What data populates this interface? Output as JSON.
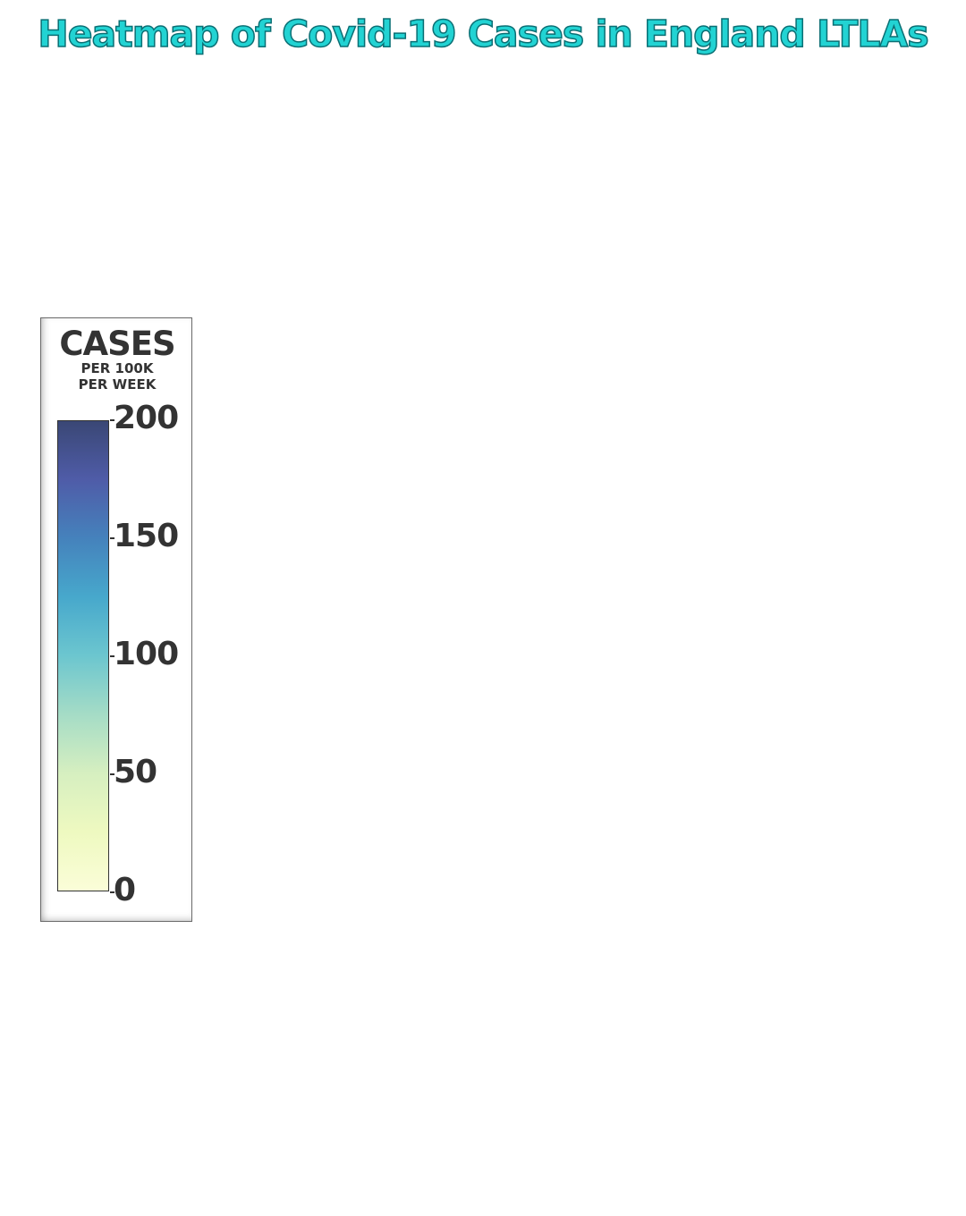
{
  "title": "Heatmap of Covid-19 Cases in England LTLAs",
  "colors": {
    "title_fill": "#22d3d3",
    "title_outline": "#0b6f74",
    "text": "#333333"
  },
  "legend": {
    "title": "CASES",
    "subtitle_line1": "PER 100K",
    "subtitle_line2": "PER WEEK",
    "min": 0,
    "max": 200,
    "ticks": [
      {
        "value": 200,
        "label": "200"
      },
      {
        "value": 150,
        "label": "150"
      },
      {
        "value": 100,
        "label": "100"
      },
      {
        "value": 50,
        "label": "50"
      },
      {
        "value": 0,
        "label": "0"
      }
    ],
    "colorscale": [
      {
        "value": 0,
        "color": "#fbfdd8"
      },
      {
        "value": 25,
        "color": "#eef9c0"
      },
      {
        "value": 50,
        "color": "#d6efc0"
      },
      {
        "value": 75,
        "color": "#a5dcc6"
      },
      {
        "value": 100,
        "color": "#6cc6cf"
      },
      {
        "value": 125,
        "color": "#47a8cc"
      },
      {
        "value": 150,
        "color": "#4582bc"
      },
      {
        "value": 175,
        "color": "#4f5ca8"
      },
      {
        "value": 200,
        "color": "#3a4775"
      }
    ]
  }
}
